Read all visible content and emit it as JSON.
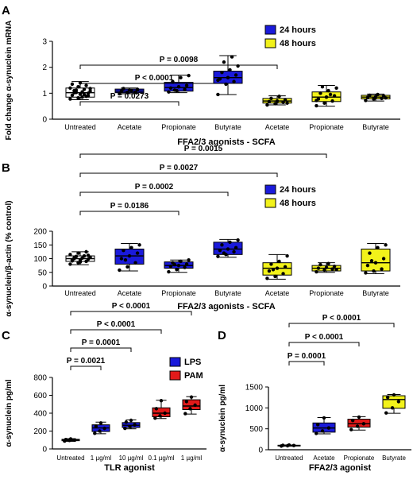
{
  "panels": [
    {
      "letter": "A"
    },
    {
      "letter": "B"
    },
    {
      "letter": "C"
    },
    {
      "letter": "D"
    }
  ],
  "colors": {
    "blue": "#1a1adb",
    "yellow": "#f2f21a",
    "red": "#e21a1a",
    "stroke": "#000000"
  },
  "chart_data": [
    {
      "type": "box",
      "panel": "A",
      "title": "",
      "xlabel": "FFA2/3 agonists - SCFA",
      "ylabel": "Fold change α-synuclein mRNA",
      "ylim": [
        0,
        3
      ],
      "yticks": [
        "0",
        "1",
        "2",
        "3"
      ],
      "yticks_values": [
        0,
        1,
        2,
        3
      ],
      "categories": [
        "Untreated",
        "Acetate",
        "Propionate",
        "Butyrate",
        "Acetate",
        "Propionate",
        "Butyrate"
      ],
      "legend": {
        "placement": "top-right",
        "items": [
          {
            "name": "24 hours",
            "color": "blue"
          },
          {
            "name": "48 hours",
            "color": "yellow"
          }
        ]
      },
      "boxes": [
        {
          "color": "white",
          "min": 0.75,
          "q1": 0.85,
          "median": 1.02,
          "q3": 1.2,
          "max": 1.45
        },
        {
          "color": "blue",
          "min": 0.98,
          "q1": 1.02,
          "median": 1.08,
          "q3": 1.16,
          "max": 1.2
        },
        {
          "color": "blue",
          "min": 1.02,
          "q1": 1.08,
          "median": 1.22,
          "q3": 1.42,
          "max": 1.7
        },
        {
          "color": "blue",
          "min": 0.95,
          "q1": 1.38,
          "median": 1.6,
          "q3": 1.85,
          "max": 2.45
        },
        {
          "color": "yellow",
          "min": 0.55,
          "q1": 0.62,
          "median": 0.7,
          "q3": 0.8,
          "max": 0.9
        },
        {
          "color": "yellow",
          "min": 0.5,
          "q1": 0.68,
          "median": 0.85,
          "q3": 1.05,
          "max": 1.3
        },
        {
          "color": "yellow",
          "min": 0.7,
          "q1": 0.78,
          "median": 0.85,
          "q3": 0.92,
          "max": 0.97
        }
      ],
      "points": [
        [
          0.78,
          0.82,
          0.88,
          0.92,
          0.96,
          1.0,
          1.02,
          1.05,
          1.08,
          1.12,
          1.15,
          1.2,
          1.25,
          1.3,
          1.35,
          1.4,
          0.9,
          1.1,
          0.85,
          1.18,
          1.03,
          0.95
        ],
        [
          0.98,
          1.02,
          1.05,
          1.08,
          1.12,
          1.15,
          1.18,
          1.1
        ],
        [
          1.05,
          1.1,
          1.15,
          1.2,
          1.25,
          1.3,
          1.45,
          1.6,
          1.68,
          1.12
        ],
        [
          0.95,
          1.35,
          1.45,
          1.55,
          1.6,
          1.7,
          1.8,
          1.9,
          2.05,
          2.2,
          2.4,
          1.5
        ],
        [
          0.55,
          0.6,
          0.65,
          0.68,
          0.7,
          0.75,
          0.8,
          0.88,
          0.62
        ],
        [
          0.52,
          0.62,
          0.7,
          0.78,
          0.85,
          0.9,
          1.0,
          1.1,
          1.2,
          1.25,
          0.95,
          0.72
        ],
        [
          0.72,
          0.78,
          0.8,
          0.84,
          0.86,
          0.9,
          0.92,
          0.95,
          0.82
        ]
      ],
      "comparisons": [
        {
          "from": 0,
          "to": 2,
          "label": "P = 0.0273"
        },
        {
          "from": 0,
          "to": 3,
          "label": "P < 0.0001"
        },
        {
          "from": 0,
          "to": 4,
          "label": "P = 0.0098"
        }
      ]
    },
    {
      "type": "box",
      "panel": "B",
      "title": "",
      "xlabel": "FFA2/3 agonists - SCFA",
      "ylabel": "α-synuclein/β-actin (% control)",
      "ylim": [
        0,
        200
      ],
      "yticks": [
        "0",
        "50",
        "100",
        "150",
        "200"
      ],
      "yticks_values": [
        0,
        50,
        100,
        150,
        200
      ],
      "categories": [
        "Untreated",
        "Acetate",
        "Propionate",
        "Butyrate",
        "Acetate",
        "Propionate",
        "Butyrate"
      ],
      "legend": {
        "placement": "top-right",
        "items": [
          {
            "name": "24 hours",
            "color": "blue"
          },
          {
            "name": "48 hours",
            "color": "yellow"
          }
        ]
      },
      "boxes": [
        {
          "color": "white",
          "min": 78,
          "q1": 90,
          "median": 100,
          "q3": 110,
          "max": 125
        },
        {
          "color": "blue",
          "min": 55,
          "q1": 80,
          "median": 110,
          "q3": 135,
          "max": 155
        },
        {
          "color": "blue",
          "min": 50,
          "q1": 65,
          "median": 75,
          "q3": 88,
          "max": 95
        },
        {
          "color": "blue",
          "min": 105,
          "q1": 115,
          "median": 135,
          "q3": 160,
          "max": 170
        },
        {
          "color": "yellow",
          "min": 25,
          "q1": 40,
          "median": 65,
          "q3": 85,
          "max": 115
        },
        {
          "color": "yellow",
          "min": 50,
          "q1": 55,
          "median": 65,
          "q3": 75,
          "max": 85
        },
        {
          "color": "yellow",
          "min": 45,
          "q1": 55,
          "median": 85,
          "q3": 135,
          "max": 155
        }
      ],
      "points": [
        [
          80,
          85,
          90,
          92,
          95,
          98,
          100,
          102,
          105,
          108,
          110,
          115,
          120,
          125,
          96,
          88,
          112,
          103
        ],
        [
          58,
          70,
          85,
          100,
          110,
          120,
          130,
          140,
          150,
          95
        ],
        [
          52,
          60,
          68,
          72,
          75,
          80,
          85,
          90,
          95,
          78
        ],
        [
          108,
          115,
          125,
          130,
          135,
          140,
          150,
          160,
          168,
          120
        ],
        [
          28,
          35,
          45,
          55,
          65,
          70,
          80,
          90,
          110,
          60
        ],
        [
          52,
          58,
          62,
          65,
          68,
          72,
          78,
          82,
          60
        ],
        [
          48,
          55,
          62,
          75,
          85,
          100,
          120,
          140,
          150,
          92
        ]
      ],
      "comparisons": [
        {
          "from": 0,
          "to": 2,
          "label": "P = 0.0186"
        },
        {
          "from": 0,
          "to": 3,
          "label": "P = 0.0002"
        },
        {
          "from": 0,
          "to": 4,
          "label": "P = 0.0027"
        },
        {
          "from": 0,
          "to": 5,
          "label": "P = 0.0015"
        }
      ]
    },
    {
      "type": "box",
      "panel": "C",
      "title": "",
      "xlabel": "TLR agonist",
      "ylabel": "α-synuclein pg/ml",
      "ylim": [
        0,
        800
      ],
      "yticks": [
        "0",
        "200",
        "400",
        "600",
        "800"
      ],
      "yticks_values": [
        0,
        200,
        400,
        600,
        800
      ],
      "categories": [
        "Untreated",
        "1 µg/ml",
        "10 µg/ml",
        "0.1 µg/ml",
        "1 µg/ml"
      ],
      "legend": {
        "placement": "top-right",
        "items": [
          {
            "name": "LPS",
            "color": "blue"
          },
          {
            "name": "PAM",
            "color": "red"
          }
        ]
      },
      "boxes": [
        {
          "color": "white",
          "min": 85,
          "q1": 92,
          "median": 100,
          "q3": 108,
          "max": 115
        },
        {
          "color": "blue",
          "min": 170,
          "q1": 195,
          "median": 235,
          "q3": 270,
          "max": 300
        },
        {
          "color": "blue",
          "min": 225,
          "q1": 240,
          "median": 265,
          "q3": 295,
          "max": 325
        },
        {
          "color": "red",
          "min": 340,
          "q1": 360,
          "median": 400,
          "q3": 460,
          "max": 545
        },
        {
          "color": "red",
          "min": 390,
          "q1": 440,
          "median": 480,
          "q3": 550,
          "max": 585
        }
      ],
      "points": [
        [
          88,
          95,
          100,
          105,
          112
        ],
        [
          175,
          200,
          230,
          255,
          290
        ],
        [
          230,
          250,
          270,
          300,
          320
        ],
        [
          345,
          370,
          400,
          450,
          540
        ],
        [
          395,
          450,
          490,
          530,
          580
        ]
      ],
      "comparisons": [
        {
          "from": 0,
          "to": 1,
          "label": "P = 0.0021"
        },
        {
          "from": 0,
          "to": 2,
          "label": "P = 0.0001"
        },
        {
          "from": 0,
          "to": 3,
          "label": "P < 0.0001"
        },
        {
          "from": 0,
          "to": 4,
          "label": "P < 0.0001"
        }
      ]
    },
    {
      "type": "box",
      "panel": "D",
      "title": "",
      "xlabel": "FFA2/3 agonist",
      "ylabel": "α-synuclein pg/ml",
      "ylim": [
        0,
        1500
      ],
      "yticks": [
        "0",
        "500",
        "1000",
        "1500"
      ],
      "yticks_values": [
        0,
        500,
        1000,
        1500
      ],
      "categories": [
        "Untreated",
        "Acetate",
        "Propionate",
        "Butyrate"
      ],
      "boxes": [
        {
          "color": "white",
          "min": 85,
          "q1": 95,
          "median": 100,
          "q3": 108,
          "max": 115
        },
        {
          "color": "blue",
          "min": 380,
          "q1": 420,
          "median": 520,
          "q3": 640,
          "max": 770
        },
        {
          "color": "red",
          "min": 470,
          "q1": 540,
          "median": 620,
          "q3": 730,
          "max": 790
        },
        {
          "color": "yellow",
          "min": 870,
          "q1": 990,
          "median": 1200,
          "q3": 1290,
          "max": 1320
        }
      ],
      "points": [
        [
          88,
          95,
          100,
          105,
          112
        ],
        [
          390,
          450,
          520,
          600,
          760
        ],
        [
          480,
          560,
          620,
          700,
          780
        ],
        [
          880,
          1000,
          1150,
          1250,
          1310
        ]
      ],
      "comparisons": [
        {
          "from": 0,
          "to": 1,
          "label": "P = 0.0001"
        },
        {
          "from": 0,
          "to": 2,
          "label": "P < 0.0001"
        },
        {
          "from": 0,
          "to": 3,
          "label": "P < 0.0001"
        }
      ]
    }
  ]
}
